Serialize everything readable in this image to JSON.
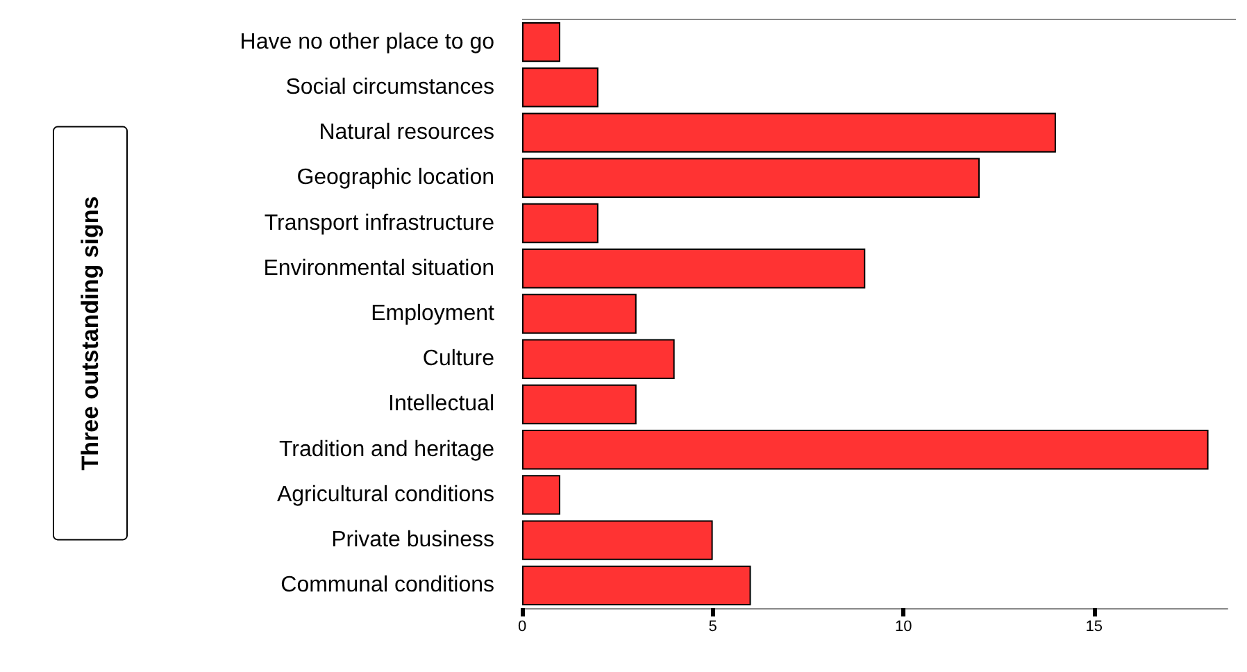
{
  "chart_data": {
    "type": "bar",
    "orientation": "horizontal",
    "annotations": [
      "Three outstanding signs"
    ],
    "categories": [
      "Have no other place to go",
      "Social circumstances",
      "Natural resources",
      "Geographic location",
      "Transport infrastructure",
      "Environmental situation",
      "Employment",
      "Culture",
      "Intellectual",
      "Tradition and heritage",
      "Agricultural conditions",
      "Private business",
      "Communal conditions"
    ],
    "values": [
      1,
      2,
      14,
      12,
      2,
      9,
      3,
      4,
      3,
      18,
      1,
      5,
      6
    ],
    "color": "#ff3333",
    "xlim": [
      0,
      18.5
    ],
    "xticks": [
      0,
      5,
      10,
      15
    ],
    "grid": false
  }
}
